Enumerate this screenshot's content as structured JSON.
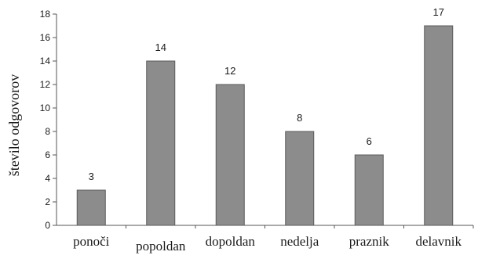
{
  "chart_data": {
    "type": "bar",
    "categories": [
      "ponoči",
      "popoldan",
      "dopoldan",
      "nedelja",
      "praznik",
      "delavnik"
    ],
    "values": [
      3,
      14,
      12,
      8,
      6,
      17
    ],
    "data_labels": [
      "3",
      "14",
      "12",
      "8",
      "6",
      "17"
    ],
    "ylabel": "število odgovorov",
    "xlabel": "",
    "ylim": [
      0,
      18
    ],
    "yticks": [
      0,
      2,
      4,
      6,
      8,
      10,
      12,
      14,
      16,
      18
    ],
    "ytick_labels": [
      "0",
      "2",
      "4",
      "6",
      "8",
      "10",
      "12",
      "14",
      "16",
      "18"
    ],
    "grid": false,
    "legend": "none",
    "bar_color": "#8c8c8c",
    "bar_stroke": "#5a5a5a",
    "axis_color": "#555555"
  }
}
